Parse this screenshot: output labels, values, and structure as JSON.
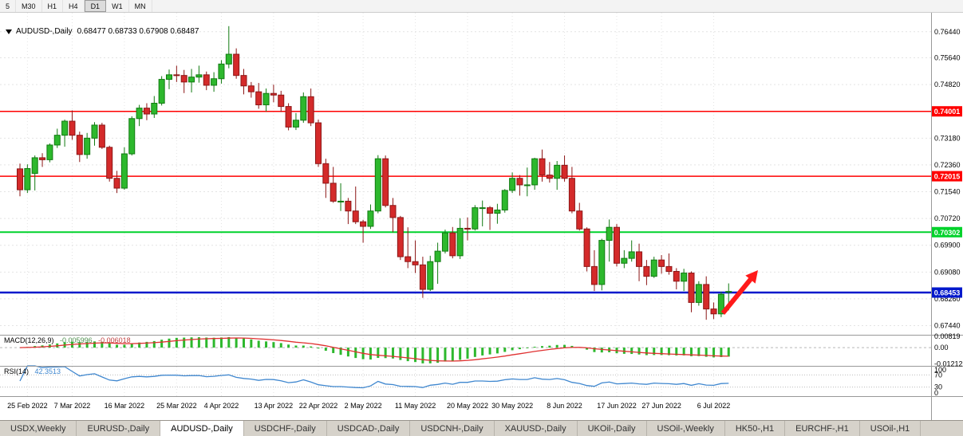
{
  "toolbar": {
    "timeframes": [
      "5",
      "M30",
      "H1",
      "H4",
      "D1",
      "W1",
      "MN"
    ],
    "active": "D1"
  },
  "chart_header": {
    "symbol": "AUDUSD-,Daily",
    "ohlc": "0.68477 0.68733 0.67908 0.68487"
  },
  "price_axis": {
    "labels": [
      {
        "text": "0.76440",
        "value": 0.7644
      },
      {
        "text": "0.75640",
        "value": 0.7564
      },
      {
        "text": "0.74820",
        "value": 0.7482
      },
      {
        "text": "0.73180",
        "value": 0.7318
      },
      {
        "text": "0.72360",
        "value": 0.7236
      },
      {
        "text": "0.71540",
        "value": 0.7154
      },
      {
        "text": "0.70720",
        "value": 0.7072
      },
      {
        "text": "0.69900",
        "value": 0.699
      },
      {
        "text": "0.69080",
        "value": 0.6908
      },
      {
        "text": "0.68260",
        "value": 0.6826
      },
      {
        "text": "0.67440",
        "value": 0.6744
      }
    ],
    "extra_gridlines": [
      0.74
    ]
  },
  "levels": [
    {
      "text": "0.74001",
      "value": 0.74001,
      "color": "#ff0000",
      "width": 1.5
    },
    {
      "text": "0.72015",
      "value": 0.72015,
      "color": "#ff0000",
      "width": 1.5
    },
    {
      "text": "0.70302",
      "value": 0.70302,
      "color": "#00d22b",
      "width": 2
    },
    {
      "text": "0.68453",
      "value": 0.68453,
      "color": "#0018cc",
      "width": 2.5
    }
  ],
  "date_axis": [
    {
      "text": "25 Feb 2022",
      "index": 1
    },
    {
      "text": "7 Mar 2022",
      "index": 7
    },
    {
      "text": "16 Mar 2022",
      "index": 14
    },
    {
      "text": "25 Mar 2022",
      "index": 21
    },
    {
      "text": "4 Apr 2022",
      "index": 27
    },
    {
      "text": "13 Apr 2022",
      "index": 34
    },
    {
      "text": "22 Apr 2022",
      "index": 40
    },
    {
      "text": "2 May 2022",
      "index": 46
    },
    {
      "text": "11 May 2022",
      "index": 53
    },
    {
      "text": "20 May 2022",
      "index": 60
    },
    {
      "text": "30 May 2022",
      "index": 66
    },
    {
      "text": "8 Jun 2022",
      "index": 73
    },
    {
      "text": "17 Jun 2022",
      "index": 80
    },
    {
      "text": "27 Jun 2022",
      "index": 86
    },
    {
      "text": "6 Jul 2022",
      "index": 93
    }
  ],
  "indicators": {
    "macd": {
      "label": "MACD(12,26,9)",
      "value_main": "-0.005996",
      "value_signal": "-0.006018",
      "params": {
        "fast": 12,
        "slow": 26,
        "signal": 9
      },
      "axis": [
        {
          "text": "0.00819",
          "value": 0.00819
        },
        {
          "text": "0.00",
          "value": 0
        },
        {
          "text": "-0.01212",
          "value": -0.01212
        }
      ]
    },
    "rsi": {
      "label": "RSI(14)",
      "value": "42.3513",
      "period": 14,
      "levels": [
        70,
        30
      ],
      "axis": [
        {
          "text": "100",
          "value": 100
        },
        {
          "text": "70",
          "value": 70
        },
        {
          "text": "30",
          "value": 30
        },
        {
          "text": "0",
          "value": 0
        }
      ]
    }
  },
  "annotations": [
    {
      "type": "arrow",
      "color": "#ff1a1a",
      "from": [
        906,
        393
      ],
      "to": [
        950,
        339
      ]
    }
  ],
  "tabs": [
    {
      "label": "USDX,Weekly"
    },
    {
      "label": "EURUSD-,Daily"
    },
    {
      "label": "AUDUSD-,Daily",
      "active": true
    },
    {
      "label": "USDCHF-,Daily"
    },
    {
      "label": "USDCAD-,Daily"
    },
    {
      "label": "USDCNH-,Daily"
    },
    {
      "label": "XAUUSD-,Daily"
    },
    {
      "label": "UKOil-,Daily"
    },
    {
      "label": "USOil-,Weekly"
    },
    {
      "label": "HK50-,H1"
    },
    {
      "label": "EURCHF-,H1"
    },
    {
      "label": "USOil-,H1"
    }
  ],
  "colors": {
    "up": "#2db82d",
    "up_border": "#117a11",
    "down": "#d42a2a",
    "down_border": "#8c1616",
    "macd_hist": "#2db82d",
    "macd_signal": "#e03030",
    "rsi_line": "#3f87cf",
    "grid": "#e4e4e4",
    "panel_border": "#999999",
    "axis_text": "#000000"
  },
  "chart_data": {
    "type": "candlestick",
    "symbol": "AUDUSD",
    "timeframe": "Daily",
    "price_range_visible": [
      0.6716,
      0.7702
    ],
    "ohlc": [
      [
        0.7224,
        0.724,
        0.714,
        0.716
      ],
      [
        0.716,
        0.7238,
        0.715,
        0.7225
      ],
      [
        0.721,
        0.7265,
        0.7158,
        0.7258
      ],
      [
        0.7258,
        0.7272,
        0.723,
        0.7252
      ],
      [
        0.7252,
        0.7302,
        0.7244,
        0.7297
      ],
      [
        0.7297,
        0.7347,
        0.7288,
        0.7327
      ],
      [
        0.7327,
        0.7375,
        0.7292,
        0.737
      ],
      [
        0.737,
        0.7403,
        0.7313,
        0.7327
      ],
      [
        0.7327,
        0.7338,
        0.7245,
        0.7268
      ],
      [
        0.7268,
        0.7334,
        0.7255,
        0.7318
      ],
      [
        0.7318,
        0.7367,
        0.7295,
        0.7358
      ],
      [
        0.7358,
        0.7365,
        0.7285,
        0.729
      ],
      [
        0.729,
        0.7295,
        0.7185,
        0.7195
      ],
      [
        0.7195,
        0.7218,
        0.715,
        0.7165
      ],
      [
        0.7165,
        0.729,
        0.716,
        0.727
      ],
      [
        0.727,
        0.7385,
        0.7265,
        0.7378
      ],
      [
        0.7378,
        0.742,
        0.7355,
        0.741
      ],
      [
        0.741,
        0.7425,
        0.7373,
        0.7392
      ],
      [
        0.7392,
        0.7447,
        0.738,
        0.7425
      ],
      [
        0.7425,
        0.7508,
        0.7418,
        0.7498
      ],
      [
        0.7498,
        0.7528,
        0.7468,
        0.7512
      ],
      [
        0.7512,
        0.754,
        0.749,
        0.751
      ],
      [
        0.751,
        0.7527,
        0.7456,
        0.749
      ],
      [
        0.749,
        0.753,
        0.7458,
        0.7505
      ],
      [
        0.7505,
        0.754,
        0.7488,
        0.7512
      ],
      [
        0.7512,
        0.7522,
        0.7465,
        0.748
      ],
      [
        0.748,
        0.752,
        0.746,
        0.75
      ],
      [
        0.75,
        0.7557,
        0.7485,
        0.7545
      ],
      [
        0.7545,
        0.7661,
        0.7532,
        0.7575
      ],
      [
        0.7575,
        0.7593,
        0.75,
        0.751
      ],
      [
        0.751,
        0.753,
        0.7452,
        0.7478
      ],
      [
        0.7478,
        0.749,
        0.7442,
        0.746
      ],
      [
        0.746,
        0.7487,
        0.7408,
        0.742
      ],
      [
        0.742,
        0.747,
        0.74,
        0.7455
      ],
      [
        0.7455,
        0.7482,
        0.7428,
        0.745
      ],
      [
        0.745,
        0.7463,
        0.7398,
        0.7415
      ],
      [
        0.7415,
        0.7425,
        0.7342,
        0.7352
      ],
      [
        0.7352,
        0.7395,
        0.7343,
        0.7373
      ],
      [
        0.7373,
        0.7458,
        0.7365,
        0.7445
      ],
      [
        0.7445,
        0.747,
        0.7355,
        0.7365
      ],
      [
        0.7365,
        0.7375,
        0.723,
        0.724
      ],
      [
        0.724,
        0.7255,
        0.7135,
        0.718
      ],
      [
        0.718,
        0.723,
        0.712,
        0.7125
      ],
      [
        0.7125,
        0.718,
        0.7095,
        0.7125
      ],
      [
        0.7125,
        0.7135,
        0.7055,
        0.7095
      ],
      [
        0.7095,
        0.717,
        0.7055,
        0.7062
      ],
      [
        0.7062,
        0.7068,
        0.6998,
        0.7048
      ],
      [
        0.7048,
        0.7115,
        0.704,
        0.7095
      ],
      [
        0.7095,
        0.7266,
        0.7088,
        0.7255
      ],
      [
        0.7255,
        0.7265,
        0.7106,
        0.7112
      ],
      [
        0.7112,
        0.7135,
        0.703,
        0.7075
      ],
      [
        0.7075,
        0.708,
        0.6945,
        0.6955
      ],
      [
        0.6955,
        0.7045,
        0.692,
        0.694
      ],
      [
        0.694,
        0.7005,
        0.6905,
        0.693
      ],
      [
        0.693,
        0.6955,
        0.6829,
        0.6855
      ],
      [
        0.6855,
        0.6958,
        0.685,
        0.694
      ],
      [
        0.694,
        0.6998,
        0.6872,
        0.6972
      ],
      [
        0.6972,
        0.7038,
        0.6965,
        0.7028
      ],
      [
        0.7028,
        0.7046,
        0.695,
        0.6958
      ],
      [
        0.6958,
        0.7073,
        0.6948,
        0.7042
      ],
      [
        0.7042,
        0.7075,
        0.7005,
        0.704
      ],
      [
        0.704,
        0.7113,
        0.7035,
        0.7105
      ],
      [
        0.7105,
        0.7127,
        0.7048,
        0.7105
      ],
      [
        0.7105,
        0.711,
        0.7037,
        0.7088
      ],
      [
        0.7088,
        0.7117,
        0.7056,
        0.7098
      ],
      [
        0.7098,
        0.7162,
        0.709,
        0.7158
      ],
      [
        0.7158,
        0.7213,
        0.715,
        0.7195
      ],
      [
        0.7195,
        0.7205,
        0.7142,
        0.7175
      ],
      [
        0.7175,
        0.7228,
        0.714,
        0.7175
      ],
      [
        0.7175,
        0.7258,
        0.716,
        0.7255
      ],
      [
        0.7255,
        0.7283,
        0.7185,
        0.7205
      ],
      [
        0.7205,
        0.7245,
        0.7182,
        0.7195
      ],
      [
        0.7195,
        0.7248,
        0.716,
        0.7235
      ],
      [
        0.7235,
        0.7265,
        0.7185,
        0.7195
      ],
      [
        0.7195,
        0.723,
        0.7088,
        0.7095
      ],
      [
        0.7095,
        0.712,
        0.7035,
        0.704
      ],
      [
        0.704,
        0.7045,
        0.691,
        0.6925
      ],
      [
        0.6925,
        0.6975,
        0.685,
        0.687
      ],
      [
        0.687,
        0.701,
        0.6852,
        0.7005
      ],
      [
        0.7005,
        0.7069,
        0.694,
        0.7045
      ],
      [
        0.7045,
        0.7055,
        0.6925,
        0.6935
      ],
      [
        0.6935,
        0.6975,
        0.692,
        0.695
      ],
      [
        0.695,
        0.7005,
        0.694,
        0.697
      ],
      [
        0.697,
        0.6995,
        0.688,
        0.6925
      ],
      [
        0.6925,
        0.6945,
        0.6868,
        0.6895
      ],
      [
        0.6895,
        0.6955,
        0.689,
        0.6945
      ],
      [
        0.6945,
        0.696,
        0.6903,
        0.6925
      ],
      [
        0.6925,
        0.6965,
        0.69,
        0.691
      ],
      [
        0.691,
        0.692,
        0.6855,
        0.688
      ],
      [
        0.688,
        0.6918,
        0.685,
        0.6905
      ],
      [
        0.6905,
        0.691,
        0.6785,
        0.6815
      ],
      [
        0.6815,
        0.688,
        0.6805,
        0.687
      ],
      [
        0.687,
        0.6895,
        0.6762,
        0.6795
      ],
      [
        0.6795,
        0.6815,
        0.6764,
        0.678
      ],
      [
        0.678,
        0.6848,
        0.677,
        0.684
      ],
      [
        0.68477,
        0.68733,
        0.67908,
        0.68487
      ]
    ]
  }
}
